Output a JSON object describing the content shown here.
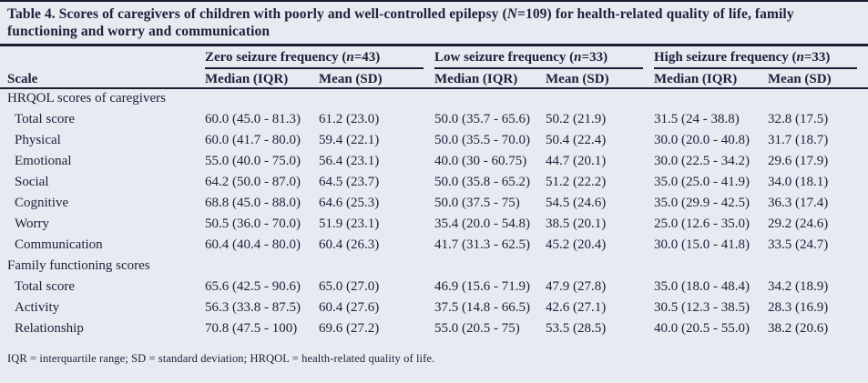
{
  "title": {
    "pre": "Table 4. Scores of caregivers of children with poorly and well-controlled epilepsy (",
    "italic": "N",
    "post": "=109) for health-related quality of life, family functioning and worry and communication"
  },
  "table": {
    "scale_header": "Scale",
    "groups": [
      {
        "pre": "Zero seizure frequency (",
        "italic": "n",
        "post": "=43)"
      },
      {
        "pre": "Low seizure frequency (",
        "italic": "n",
        "post": "=33)"
      },
      {
        "pre": "High seizure frequency (",
        "italic": "n",
        "post": "=33)"
      }
    ],
    "subcolumns": [
      "Median (IQR)",
      "Mean (SD)"
    ],
    "sections": [
      {
        "label": "HRQOL scores of caregivers",
        "rows": [
          {
            "label": "Total score",
            "values": [
              "60.0 (45.0 - 81.3)",
              "61.2 (23.0)",
              "50.0 (35.7 - 65.6)",
              "50.2 (21.9)",
              "31.5 (24 - 38.8)",
              "32.8 (17.5)"
            ]
          },
          {
            "label": "Physical",
            "values": [
              "60.0 (41.7 - 80.0)",
              "59.4 (22.1)",
              "50.0 (35.5 - 70.0)",
              "50.4 (22.4)",
              "30.0 (20.0 - 40.8)",
              "31.7 (18.7)"
            ]
          },
          {
            "label": "Emotional",
            "values": [
              "55.0 (40.0 - 75.0)",
              "56.4 (23.1)",
              "40.0 (30 - 60.75)",
              "44.7 (20.1)",
              "30.0 (22.5 - 34.2)",
              "29.6 (17.9)"
            ]
          },
          {
            "label": "Social",
            "values": [
              "64.2 (50.0 - 87.0)",
              "64.5 (23.7)",
              "50.0 (35.8 - 65.2)",
              "51.2 (22.2)",
              "35.0 (25.0 - 41.9)",
              "34.0 (18.1)"
            ]
          },
          {
            "label": "Cognitive",
            "values": [
              "68.8 (45.0 - 88.0)",
              "64.6 (25.3)",
              "50.0 (37.5 - 75)",
              "54.5 (24.6)",
              "35.0 (29.9 - 42.5)",
              "36.3 (17.4)"
            ]
          },
          {
            "label": "Worry",
            "values": [
              "50.5 (36.0 - 70.0)",
              "51.9 (23.1)",
              "35.4 (20.0 - 54.8)",
              "38.5 (20.1)",
              "25.0 (12.6 - 35.0)",
              "29.2 (24.6)"
            ]
          },
          {
            "label": "Communication",
            "values": [
              "60.4 (40.4 - 80.0)",
              "60.4 (26.3)",
              "41.7 (31.3 - 62.5)",
              "45.2 (20.4)",
              "30.0 (15.0 - 41.8)",
              "33.5 (24.7)"
            ]
          }
        ]
      },
      {
        "label": "Family functioning scores",
        "rows": [
          {
            "label": "Total score",
            "values": [
              "65.6 (42.5 - 90.6)",
              "65.0 (27.0)",
              "46.9 (15.6 - 71.9)",
              "47.9 (27.8)",
              "35.0 (18.0 - 48.4)",
              "34.2 (18.9)"
            ]
          },
          {
            "label": "Activity",
            "values": [
              "56.3 (33.8 - 87.5)",
              "60.4 (27.6)",
              "37.5 (14.8 - 66.5)",
              "42.6 (27.1)",
              "30.5 (12.3 - 38.5)",
              "28.3 (16.9)"
            ]
          },
          {
            "label": "Relationship",
            "values": [
              "70.8 (47.5 - 100)",
              "69.6 (27.2)",
              "55.0 (20.5 - 75)",
              "53.5 (28.5)",
              "40.0 (20.5 - 55.0)",
              "38.2 (20.6)"
            ]
          }
        ]
      }
    ]
  },
  "footnote": "IQR = interquartile range; SD = standard deviation; HRQOL = health-related quality of life.",
  "colors": {
    "background": "#e8eaf2",
    "text": "#20203a",
    "rule": "#1b1b32"
  }
}
